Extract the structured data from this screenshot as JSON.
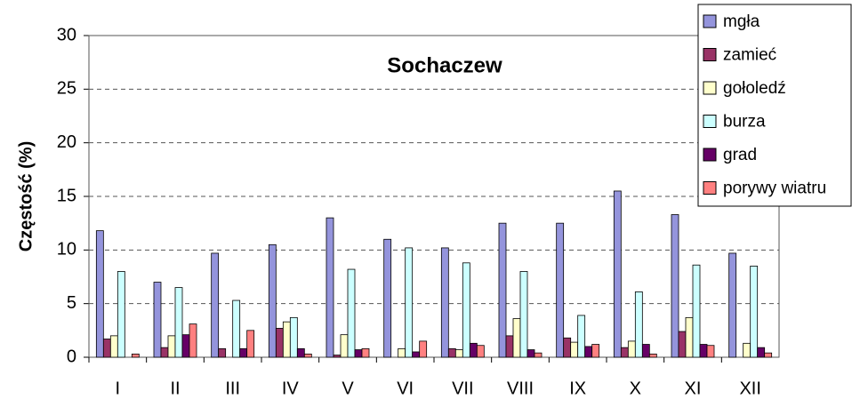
{
  "chart_data": {
    "type": "bar",
    "title": "Sochaczew",
    "y_label": "Częstość (%)",
    "categories": [
      "I",
      "II",
      "III",
      "IV",
      "V",
      "VI",
      "VII",
      "VIII",
      "IX",
      "X",
      "XI",
      "XII"
    ],
    "series": [
      {
        "name": "mgła",
        "color": "#9494dc",
        "values": [
          11.8,
          7.0,
          9.7,
          10.5,
          13.0,
          11.0,
          10.2,
          12.5,
          12.5,
          15.5,
          13.3,
          9.7
        ]
      },
      {
        "name": "zamieć",
        "color": "#993366",
        "values": [
          1.7,
          0.9,
          0.8,
          2.7,
          0.2,
          0,
          0.8,
          2.0,
          1.8,
          0.9,
          2.4,
          0
        ]
      },
      {
        "name": "gołoledź",
        "color": "#ffffcc",
        "values": [
          2.0,
          2.0,
          0,
          3.3,
          2.1,
          0.8,
          0.7,
          3.6,
          1.4,
          1.5,
          3.7,
          1.3
        ]
      },
      {
        "name": "burza",
        "color": "#ccffff",
        "values": [
          8.0,
          6.5,
          5.3,
          3.7,
          8.2,
          10.2,
          8.8,
          8.0,
          3.9,
          6.1,
          8.6,
          8.5
        ]
      },
      {
        "name": "grad",
        "color": "#660066",
        "values": [
          0,
          2.1,
          0.8,
          0.8,
          0.7,
          0.5,
          1.3,
          0.7,
          1.0,
          1.2,
          1.2,
          0.9
        ]
      },
      {
        "name": "porywy wiatru",
        "color": "#ff8080",
        "values": [
          0.3,
          3.1,
          2.5,
          0.3,
          0.8,
          1.5,
          1.1,
          0.4,
          1.2,
          0.3,
          1.1,
          0.4
        ]
      }
    ],
    "ylim": [
      0,
      30
    ],
    "yticks": [
      0,
      5,
      10,
      15,
      20,
      25,
      30
    ],
    "grid": true,
    "legend": "top-right"
  }
}
